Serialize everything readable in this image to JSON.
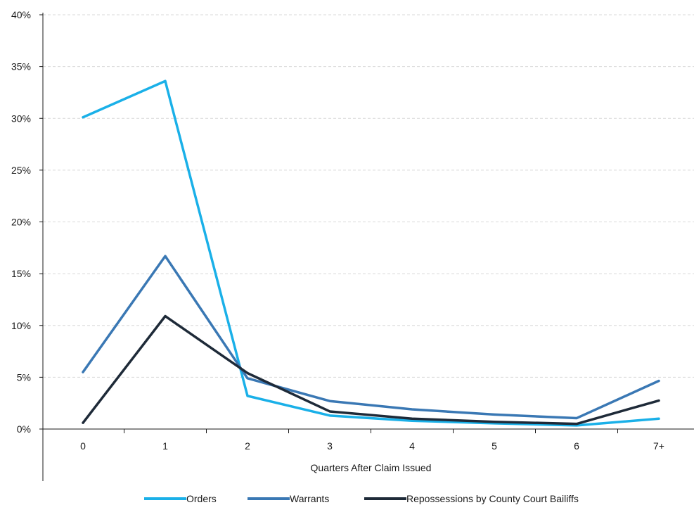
{
  "chart_data": {
    "type": "line",
    "title": "",
    "xlabel": "Quarters After Claim Issued",
    "ylabel": "",
    "categories": [
      "0",
      "1",
      "2",
      "3",
      "4",
      "5",
      "6",
      "7+"
    ],
    "ylim": [
      0,
      40
    ],
    "yticks": [
      0,
      5,
      10,
      15,
      20,
      25,
      30,
      35,
      40
    ],
    "ytick_labels": [
      "0%",
      "5%",
      "10%",
      "15%",
      "20%",
      "25%",
      "30%",
      "35%",
      "40%"
    ],
    "grid": true,
    "legend_position": "bottom",
    "series": [
      {
        "name": "Orders",
        "color": "#1ab0e8",
        "values": [
          30.1,
          33.6,
          3.2,
          1.3,
          0.8,
          0.55,
          0.35,
          1.0
        ]
      },
      {
        "name": "Warrants",
        "color": "#3a78b4",
        "values": [
          5.5,
          16.7,
          4.9,
          2.7,
          1.9,
          1.4,
          1.05,
          4.65
        ]
      },
      {
        "name": "Repossessions by County Court Bailiffs",
        "color": "#1e2a38",
        "values": [
          0.6,
          10.9,
          5.4,
          1.7,
          1.0,
          0.7,
          0.5,
          2.75
        ]
      }
    ]
  }
}
